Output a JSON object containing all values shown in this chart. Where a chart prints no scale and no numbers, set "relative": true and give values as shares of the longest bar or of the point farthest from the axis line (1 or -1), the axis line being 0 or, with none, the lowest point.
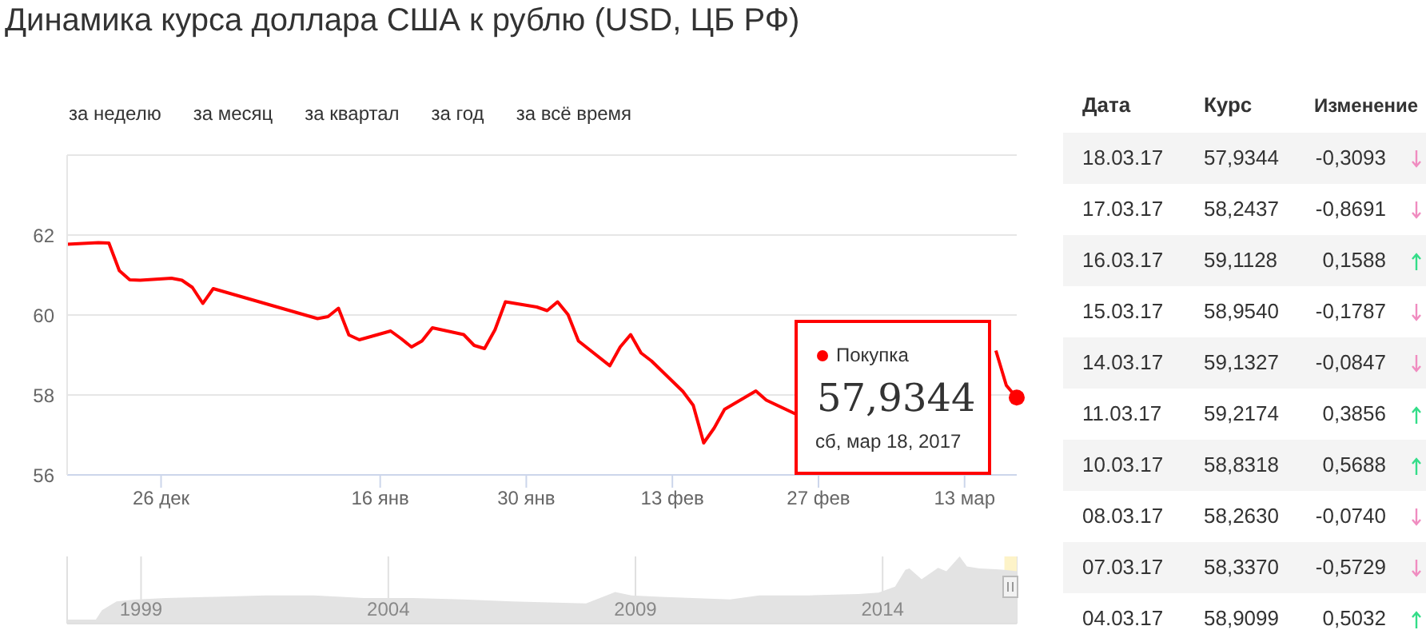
{
  "chart_data": [
    {
      "type": "line",
      "title": "Динамика курса доллара США к рублю (USD, ЦБ РФ)",
      "x": [
        "2016-12-17",
        "2016-12-20",
        "2016-12-21",
        "2016-12-22",
        "2016-12-23",
        "2016-12-24",
        "2016-12-27",
        "2016-12-28",
        "2016-12-29",
        "2016-12-30",
        "2016-12-31",
        "2017-01-10",
        "2017-01-11",
        "2017-01-12",
        "2017-01-13",
        "2017-01-14",
        "2017-01-17",
        "2017-01-18",
        "2017-01-19",
        "2017-01-20",
        "2017-01-21",
        "2017-01-24",
        "2017-01-25",
        "2017-01-26",
        "2017-01-27",
        "2017-01-28",
        "2017-01-31",
        "2017-02-01",
        "2017-02-02",
        "2017-02-03",
        "2017-02-04",
        "2017-02-07",
        "2017-02-08",
        "2017-02-09",
        "2017-02-10",
        "2017-02-11",
        "2017-02-14",
        "2017-02-15",
        "2017-02-16",
        "2017-02-17",
        "2017-02-18",
        "2017-02-21",
        "2017-02-22",
        "2017-02-25",
        "2017-02-28",
        "2017-03-01",
        "2017-03-02",
        "2017-03-03",
        "2017-03-04",
        "2017-03-07",
        "2017-03-08",
        "2017-03-10",
        "2017-03-11",
        "2017-03-14",
        "2017-03-15",
        "2017-03-16",
        "2017-03-17",
        "2017-03-18"
      ],
      "series": [
        {
          "name": "Покупка",
          "color": "#ff0000",
          "values": [
            61.77,
            61.81,
            61.8,
            61.11,
            60.88,
            60.87,
            60.92,
            60.87,
            60.69,
            60.29,
            60.66,
            59.91,
            59.96,
            60.17,
            59.5,
            59.38,
            59.6,
            59.41,
            59.2,
            59.35,
            59.68,
            59.51,
            59.24,
            59.16,
            59.63,
            60.33,
            60.2,
            60.11,
            60.33,
            60.01,
            59.35,
            58.73,
            59.2,
            59.51,
            59.05,
            58.85,
            58.09,
            57.74,
            56.8,
            57.17,
            57.64,
            58.1,
            57.87,
            57.5,
            null,
            null,
            null,
            null,
            null,
            null,
            null,
            null,
            null,
            null,
            null,
            59.11,
            58.24,
            57.93
          ]
        }
      ],
      "xlim": [
        "2016-12-17",
        "2017-03-18"
      ],
      "xticks": [
        {
          "value": "2016-12-26",
          "label": "26 дек"
        },
        {
          "value": "2017-01-16",
          "label": "16 янв"
        },
        {
          "value": "2017-01-30",
          "label": "30 янв"
        },
        {
          "value": "2017-02-13",
          "label": "13 фев"
        },
        {
          "value": "2017-02-27",
          "label": "27 фев"
        },
        {
          "value": "2017-03-13",
          "label": "13 мар"
        }
      ],
      "ylim": [
        56,
        64
      ],
      "yticks": [
        56,
        58,
        60,
        62
      ],
      "grid": "y",
      "line_style": "solid",
      "annotations": [
        "за неделю",
        "за месяц",
        "за квартал",
        "за год",
        "за всё время",
        {
          "text": "57,9344",
          "x": "2017-03-18",
          "y": 57.9344
        },
        "сб, мар 18, 2017"
      ]
    },
    {
      "type": "area",
      "relative": true,
      "x": [
        "1998-01-01",
        "1998-08-01",
        "1998-09-15",
        "1999-01-01",
        "1999-06-01",
        "2000-01-01",
        "2001-01-01",
        "2002-01-01",
        "2003-01-01",
        "2004-01-01",
        "2005-01-01",
        "2006-01-01",
        "2007-01-01",
        "2008-07-01",
        "2009-02-01",
        "2009-06-01",
        "2010-01-01",
        "2011-06-01",
        "2012-01-01",
        "2013-01-01",
        "2014-01-01",
        "2014-06-01",
        "2014-10-01",
        "2014-12-16",
        "2015-01-15",
        "2015-04-15",
        "2015-08-15",
        "2015-10-15",
        "2016-01-21",
        "2016-03-15",
        "2016-06-15",
        "2016-10-15",
        "2016-12-15",
        "2017-03-18"
      ],
      "series": [
        {
          "color": "#e3e3e3",
          "values": [
            0.06,
            0.06,
            0.2,
            0.33,
            0.36,
            0.38,
            0.4,
            0.42,
            0.42,
            0.38,
            0.38,
            0.36,
            0.33,
            0.3,
            0.47,
            0.42,
            0.4,
            0.36,
            0.42,
            0.42,
            0.44,
            0.46,
            0.55,
            0.8,
            0.82,
            0.66,
            0.83,
            0.78,
            1.0,
            0.85,
            0.82,
            0.81,
            0.8,
            0.78
          ]
        }
      ],
      "xlim": [
        "1998-01-01",
        "2017-03-18"
      ],
      "xticks": [
        {
          "value": "1999-07-01",
          "label": "1999"
        },
        {
          "value": "2004-07-01",
          "label": "2004"
        },
        {
          "value": "2009-07-01",
          "label": "2009"
        },
        {
          "value": "2014-07-01",
          "label": "2014"
        }
      ],
      "grid": "x",
      "bands": [
        {
          "axis": "x",
          "from": "2016-12-17",
          "to": "2017-03-18",
          "color": "#fdf3c8"
        }
      ]
    },
    {
      "type": "other",
      "annotations": [
        "Дата",
        "Курс",
        "Изменение",
        "18.03.17",
        "57,9344",
        "-0,3093",
        "17.03.17",
        "58,2437",
        "-0,8691",
        "16.03.17",
        "59,1128",
        "0,1588",
        "15.03.17",
        "58,9540",
        "-0,1787",
        "14.03.17",
        "59,1327",
        "-0,0847",
        "11.03.17",
        "59,2174",
        "0,3856",
        "10.03.17",
        "58,8318",
        "0,5688",
        "08.03.17",
        "58,2630",
        "-0,0740",
        "07.03.17",
        "58,3370",
        "-0,5729",
        "04.03.17",
        "58,9099",
        "0,5032"
      ]
    }
  ]
}
